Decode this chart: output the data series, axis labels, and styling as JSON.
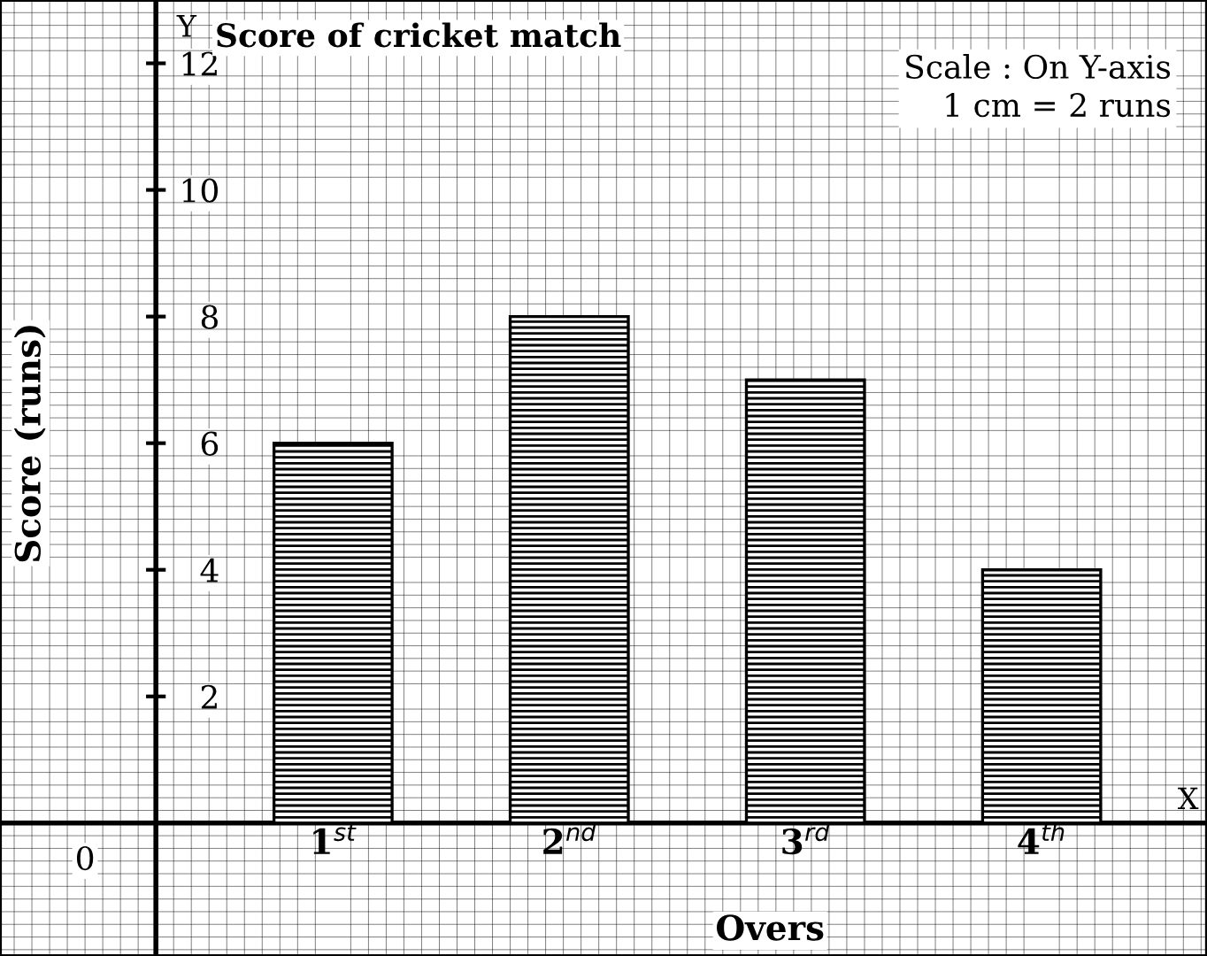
{
  "chart_data": {
    "type": "bar",
    "title": "Score of cricket match",
    "xlabel": "Overs",
    "ylabel": "Score (runs)",
    "categories": [
      "1$^{st}$",
      "2$^{nd}$",
      "3$^{rd}$",
      "4$^{th}$"
    ],
    "values": [
      6,
      8,
      7,
      4
    ],
    "color": "#000000",
    "ylim": [
      -2.1,
      13
    ],
    "yticks": [
      2,
      4,
      6,
      8,
      10,
      12
    ],
    "grid": true,
    "annotations": [
      "Scale : On Y-axis\n1 cm = 2 runs",
      "X",
      "Y",
      "0"
    ]
  }
}
